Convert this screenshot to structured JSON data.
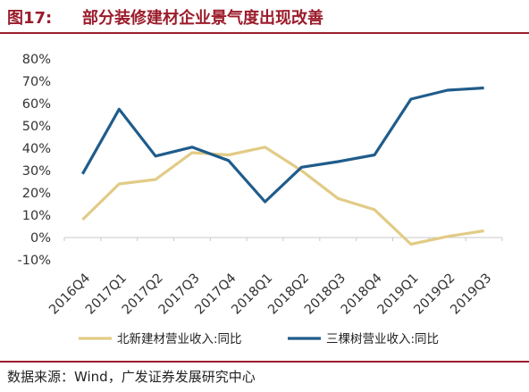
{
  "figure": {
    "number": "图17:",
    "title": "部分装修建材企业景气度出现改善",
    "source": "数据来源：Wind，广发证券发展研究中心"
  },
  "chart_data": {
    "type": "line",
    "categories": [
      "2016Q4",
      "2017Q1",
      "2017Q2",
      "2017Q3",
      "2017Q4",
      "2018Q1",
      "2018Q2",
      "2018Q3",
      "2018Q4",
      "2019Q1",
      "2019Q2",
      "2019Q3"
    ],
    "series": [
      {
        "name": "北新建材营业收入:同比",
        "color": "#e2cb86",
        "values": [
          8,
          24,
          26,
          38,
          37,
          40.5,
          30,
          17.5,
          12.5,
          -3,
          0.5,
          3
        ]
      },
      {
        "name": "三棵树营业收入:同比",
        "color": "#1f5c8b",
        "values": [
          28.5,
          57.5,
          36.5,
          40.5,
          34.5,
          16,
          31.5,
          34,
          37,
          62,
          66,
          67
        ]
      }
    ],
    "yticks": [
      "80%",
      "70%",
      "60%",
      "50%",
      "40%",
      "30%",
      "20%",
      "10%",
      "0%",
      "-10%"
    ],
    "ylim": [
      -10,
      80
    ],
    "grid": false,
    "legend_position": "bottom"
  }
}
